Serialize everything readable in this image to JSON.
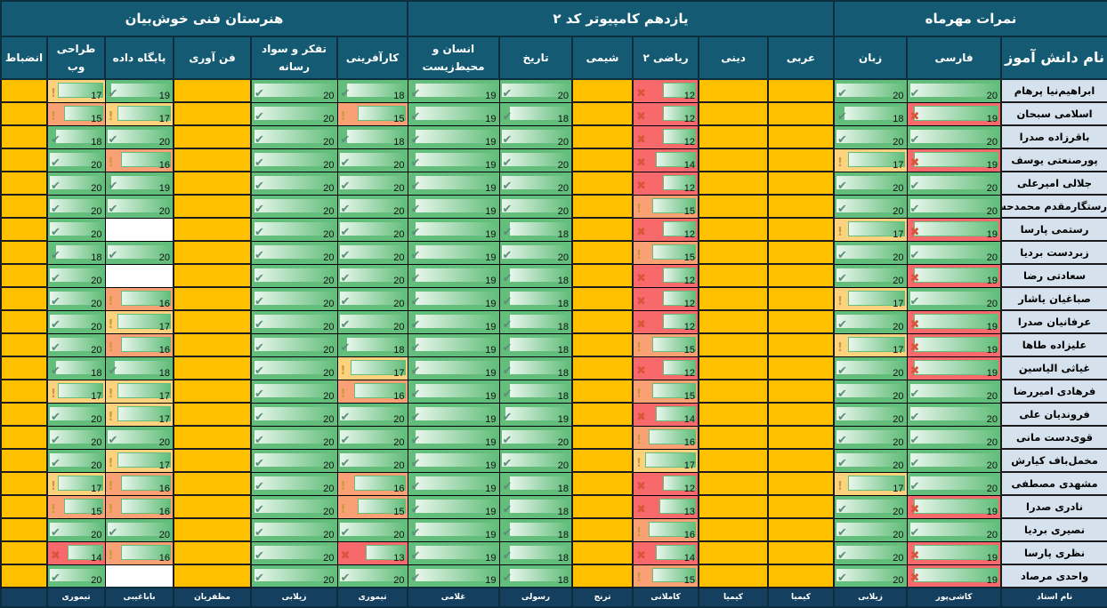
{
  "groups": [
    {
      "label": "نمرات مهرماه",
      "span": 3
    },
    {
      "label": "یازدهم کامپیوتر کد ۲",
      "span": 6
    },
    {
      "label": "هنرستان فنی خوش‌بیان",
      "span": 6
    }
  ],
  "name_header": "نام دانش آموز",
  "teacher_label": "نام استاد",
  "students": [
    "ابراهیم‌نیا پرهام",
    "اسلامی سبحان",
    "باقرزاده صدرا",
    "پورصنعتی یوسف",
    "جلالی امیرعلی",
    "رستگارمقدم محمدحسین",
    "رستمی پارسا",
    "زبردست بردیا",
    "سعادتی رضا",
    "صباغیان یاشار",
    "عرفانیان  صدرا",
    "علیزاده طاها",
    "غیاثی الیاسین",
    "فرهادی امیررضا",
    "فروندیان علی",
    "قوی‌دست مانی",
    "مخمل‌باف کیارش",
    "مشهدی مصطفی",
    "نادری صدرا",
    "نصیری بردیا",
    "نظری پارسا",
    "واحدی مرصاد"
  ],
  "columns": [
    {
      "label": "فارسی",
      "teacher": "کاشی‌پور",
      "ok_min": 20,
      "warn_min": 20,
      "values": [
        20,
        19,
        20,
        19,
        20,
        20,
        19,
        20,
        19,
        20,
        19,
        19,
        19,
        20,
        20,
        20,
        20,
        20,
        19,
        20,
        19,
        19
      ]
    },
    {
      "label": "زبان",
      "teacher": "زیلابی",
      "ok_min": 18,
      "warn_min": 15,
      "values": [
        20,
        18,
        20,
        17,
        20,
        20,
        17,
        20,
        20,
        17,
        20,
        17,
        20,
        20,
        20,
        20,
        20,
        17,
        20,
        20,
        20,
        20
      ]
    },
    {
      "label": "عربی",
      "teacher": "کیمیا",
      "values": null
    },
    {
      "label": "دینی",
      "teacher": "کیمیا",
      "values": null
    },
    {
      "label": "ریاضی ۲",
      "teacher": "کاملانی",
      "ok_min": 18,
      "warn_min": 15,
      "values": [
        12,
        12,
        12,
        14,
        12,
        15,
        12,
        15,
        12,
        12,
        12,
        15,
        12,
        15,
        14,
        16,
        17,
        12,
        13,
        16,
        14,
        15
      ]
    },
    {
      "label": "شیمی",
      "teacher": "ترنج",
      "values": null
    },
    {
      "label": "تاریخ",
      "teacher": "رسولی",
      "ok_min": 18,
      "warn_min": 15,
      "values": [
        20,
        18,
        20,
        20,
        20,
        20,
        18,
        20,
        18,
        18,
        18,
        18,
        18,
        18,
        19,
        20,
        20,
        18,
        18,
        18,
        18,
        18
      ]
    },
    {
      "label": "انسان و محیط‌زیست",
      "teacher": "غلامی",
      "ok_min": 18,
      "warn_min": 15,
      "values": [
        19,
        19,
        19,
        19,
        19,
        19,
        19,
        19,
        19,
        19,
        19,
        19,
        19,
        19,
        19,
        19,
        19,
        19,
        19,
        19,
        19,
        19
      ]
    },
    {
      "label": "کارآفرینی",
      "teacher": "تیموری",
      "ok_min": 18,
      "warn_min": 15,
      "values": [
        18,
        15,
        18,
        20,
        20,
        20,
        20,
        20,
        20,
        20,
        20,
        18,
        17,
        16,
        20,
        20,
        20,
        16,
        15,
        20,
        13,
        20
      ]
    },
    {
      "label": "تفکر و سواد رسانه",
      "teacher": "زیلابی",
      "ok_min": 18,
      "warn_min": 15,
      "values": [
        20,
        20,
        20,
        20,
        20,
        20,
        20,
        20,
        20,
        20,
        20,
        20,
        20,
        20,
        20,
        20,
        20,
        20,
        20,
        20,
        20,
        20
      ]
    },
    {
      "label": "فن آوری",
      "teacher": "مظفریان",
      "values": null
    },
    {
      "label": "پایگاه داده",
      "teacher": "باباغیبی",
      "ok_min": 18,
      "warn_min": 15,
      "values": [
        19,
        17,
        20,
        16,
        19,
        20,
        null,
        20,
        null,
        16,
        17,
        16,
        18,
        17,
        17,
        20,
        17,
        16,
        16,
        20,
        16,
        null
      ]
    },
    {
      "label": "طراحی وب",
      "teacher": "تیموری",
      "ok_min": 18,
      "warn_min": 15,
      "values": [
        17,
        15,
        18,
        20,
        20,
        20,
        20,
        18,
        20,
        20,
        20,
        20,
        18,
        17,
        20,
        20,
        20,
        17,
        15,
        20,
        14,
        20
      ]
    },
    {
      "label": "انضباط",
      "teacher": "",
      "values": null
    }
  ],
  "icons": {
    "ok": "check-icon",
    "warn": "exclamation-icon",
    "bad": "cross-icon"
  }
}
